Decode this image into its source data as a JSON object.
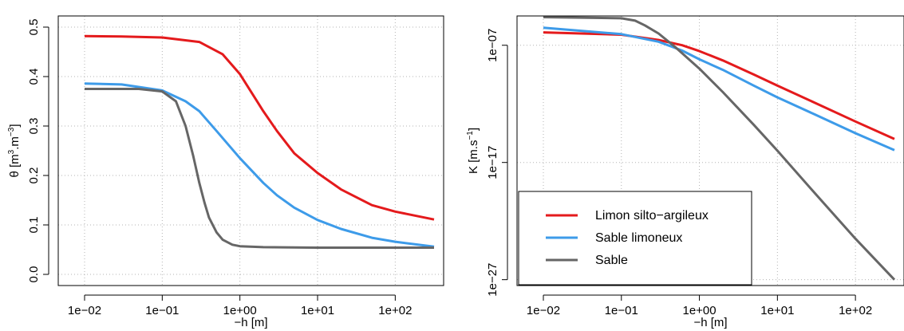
{
  "chart_data": [
    {
      "type": "line",
      "xlabel": "−h [m]",
      "ylabel_parts": [
        "θ [m",
        "3",
        ".m",
        "−3",
        "]"
      ],
      "x_scale": "log",
      "xlim": [
        0.01,
        316
      ],
      "ylim": [
        0,
        0.5
      ],
      "x_ticks": [
        {
          "value": 0.01,
          "label": "1e−02"
        },
        {
          "value": 0.1,
          "label": "1e−01"
        },
        {
          "value": 1,
          "label": "1e+00"
        },
        {
          "value": 10,
          "label": "1e+01"
        },
        {
          "value": 100,
          "label": "1e+02"
        }
      ],
      "y_ticks": [
        {
          "value": 0.0,
          "label": "0.0"
        },
        {
          "value": 0.1,
          "label": "0.1"
        },
        {
          "value": 0.2,
          "label": "0.2"
        },
        {
          "value": 0.3,
          "label": "0.3"
        },
        {
          "value": 0.4,
          "label": "0.4"
        },
        {
          "value": 0.5,
          "label": "0.5"
        }
      ],
      "grid": true,
      "series": [
        {
          "name": "Limon silto−argileux",
          "color": "#e41a1c",
          "x": [
            0.01,
            0.03,
            0.1,
            0.3,
            0.6,
            1,
            2,
            3,
            5,
            10,
            20,
            50,
            100,
            316
          ],
          "y": [
            0.482,
            0.481,
            0.479,
            0.47,
            0.445,
            0.405,
            0.33,
            0.29,
            0.245,
            0.205,
            0.172,
            0.14,
            0.127,
            0.111
          ]
        },
        {
          "name": "Sable limoneux",
          "color": "#3d9be9",
          "x": [
            0.01,
            0.03,
            0.1,
            0.2,
            0.3,
            0.5,
            1,
            2,
            3,
            5,
            10,
            20,
            50,
            100,
            316
          ],
          "y": [
            0.386,
            0.384,
            0.372,
            0.35,
            0.33,
            0.29,
            0.235,
            0.185,
            0.16,
            0.135,
            0.11,
            0.092,
            0.074,
            0.066,
            0.056
          ]
        },
        {
          "name": "Sable",
          "color": "#666666",
          "x": [
            0.01,
            0.05,
            0.1,
            0.15,
            0.2,
            0.25,
            0.3,
            0.35,
            0.4,
            0.5,
            0.6,
            0.8,
            1,
            2,
            10,
            316
          ],
          "y": [
            0.375,
            0.375,
            0.37,
            0.35,
            0.3,
            0.24,
            0.185,
            0.145,
            0.115,
            0.085,
            0.07,
            0.06,
            0.057,
            0.055,
            0.054,
            0.054
          ]
        }
      ]
    },
    {
      "type": "line",
      "xlabel": "−h [m]",
      "ylabel_parts": [
        "K [m.s",
        "−1",
        "]"
      ],
      "x_scale": "log",
      "y_scale": "log",
      "xlim": [
        0.01,
        316
      ],
      "ylim_log10": [
        -27.5,
        -4.5
      ],
      "x_ticks": [
        {
          "value": 0.01,
          "label": "1e−02"
        },
        {
          "value": 0.1,
          "label": "1e−01"
        },
        {
          "value": 1,
          "label": "1e+00"
        },
        {
          "value": 10,
          "label": "1e+01"
        },
        {
          "value": 100,
          "label": "1e+02"
        }
      ],
      "y_ticks": [
        {
          "value_log10": -7,
          "label": "1e−07"
        },
        {
          "value_log10": -17,
          "label": "1e−17"
        },
        {
          "value_log10": -27,
          "label": "1e−27"
        }
      ],
      "grid": true,
      "legend": {
        "placement": "bottom-left",
        "entries": [
          "Limon silto−argileux",
          "Sable limoneux",
          "Sable"
        ]
      },
      "series": [
        {
          "name": "Limon silto−argileux",
          "color": "#e41a1c",
          "x": [
            0.01,
            0.1,
            0.3,
            0.6,
            1,
            2,
            5,
            10,
            30,
            100,
            316
          ],
          "y_log10": [
            -5.9,
            -6.1,
            -6.55,
            -7.0,
            -7.5,
            -8.3,
            -9.5,
            -10.45,
            -11.9,
            -13.5,
            -15.0
          ]
        },
        {
          "name": "Sable limoneux",
          "color": "#3d9be9",
          "x": [
            0.01,
            0.1,
            0.3,
            0.6,
            1,
            2,
            5,
            10,
            30,
            100,
            316
          ],
          "y_log10": [
            -5.5,
            -6.05,
            -6.7,
            -7.45,
            -8.2,
            -9.1,
            -10.45,
            -11.45,
            -12.9,
            -14.5,
            -15.95
          ]
        },
        {
          "name": "Sable",
          "color": "#666666",
          "x": [
            0.01,
            0.1,
            0.15,
            0.2,
            0.3,
            0.5,
            1,
            2,
            5,
            10,
            30,
            100,
            316
          ],
          "y_log10": [
            -4.6,
            -4.7,
            -4.9,
            -5.3,
            -6.0,
            -7.2,
            -9.0,
            -11.0,
            -13.8,
            -16.0,
            -19.6,
            -23.5,
            -27.0
          ]
        }
      ]
    }
  ]
}
